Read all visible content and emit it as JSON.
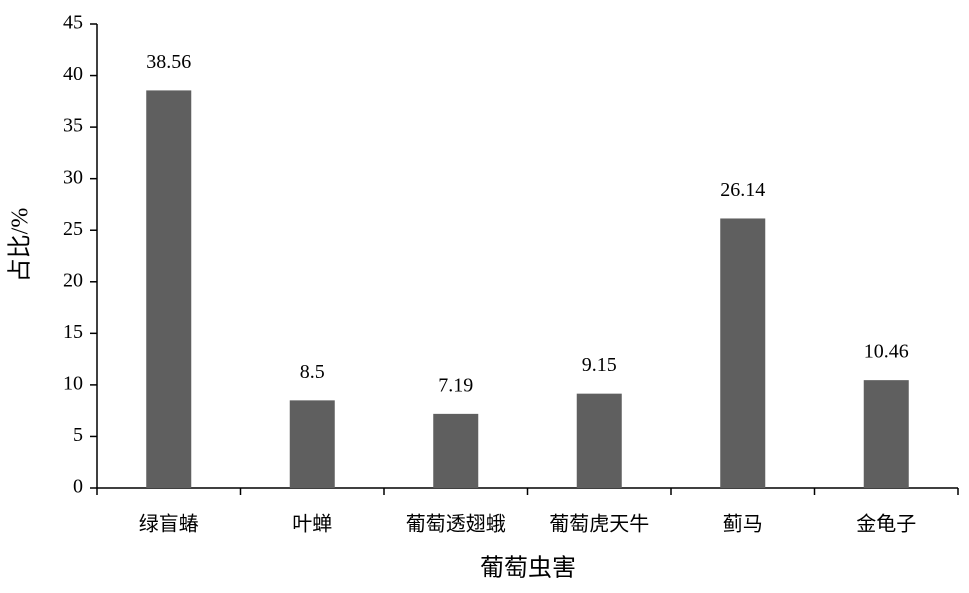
{
  "chart_data": {
    "type": "bar",
    "x_label": "葡萄虫害",
    "y_label": "占比/%",
    "categories": [
      "绿盲蝽",
      "叶蝉",
      "葡萄透翅蛾",
      "葡萄虎天牛",
      "蓟马",
      "金龟子"
    ],
    "values": [
      38.56,
      8.5,
      7.19,
      9.15,
      26.14,
      10.46
    ],
    "color": "#5f5f5f",
    "ylim": [
      0,
      45
    ],
    "yticks": [
      0,
      5,
      10,
      15,
      20,
      25,
      30,
      35,
      40,
      45
    ],
    "grid": false
  }
}
